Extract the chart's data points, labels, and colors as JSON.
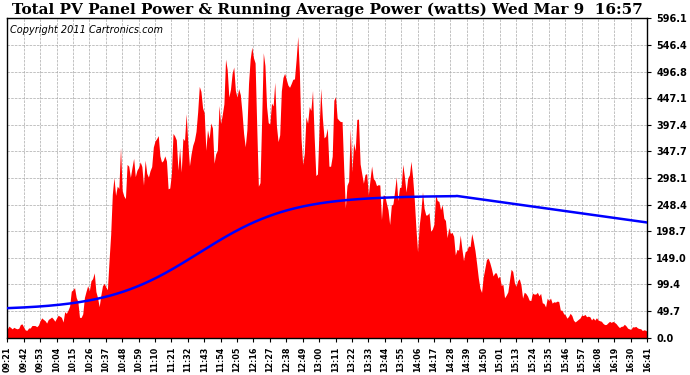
{
  "title": "Total PV Panel Power & Running Average Power (watts) Wed Mar 9  16:57",
  "copyright": "Copyright 2011 Cartronics.com",
  "yticks": [
    0.0,
    49.7,
    99.4,
    149.0,
    198.7,
    248.4,
    298.1,
    347.7,
    397.4,
    447.1,
    496.8,
    546.4,
    596.1
  ],
  "ylim": [
    0,
    596.1
  ],
  "bar_color": "#FF0000",
  "line_color": "#0000FF",
  "bg_color": "#FFFFFF",
  "grid_color": "#AAAAAA",
  "title_fontsize": 11,
  "copyright_fontsize": 7,
  "x_labels": [
    "09:21",
    "09:42",
    "09:53",
    "10:04",
    "10:15",
    "10:26",
    "10:37",
    "10:48",
    "10:59",
    "11:10",
    "11:21",
    "11:32",
    "11:43",
    "11:54",
    "12:05",
    "12:16",
    "12:27",
    "12:38",
    "12:49",
    "13:00",
    "13:11",
    "13:22",
    "13:33",
    "13:44",
    "13:55",
    "14:06",
    "14:17",
    "14:28",
    "14:39",
    "14:50",
    "15:01",
    "15:13",
    "15:24",
    "15:35",
    "15:46",
    "15:57",
    "16:08",
    "16:19",
    "16:30",
    "16:41"
  ]
}
